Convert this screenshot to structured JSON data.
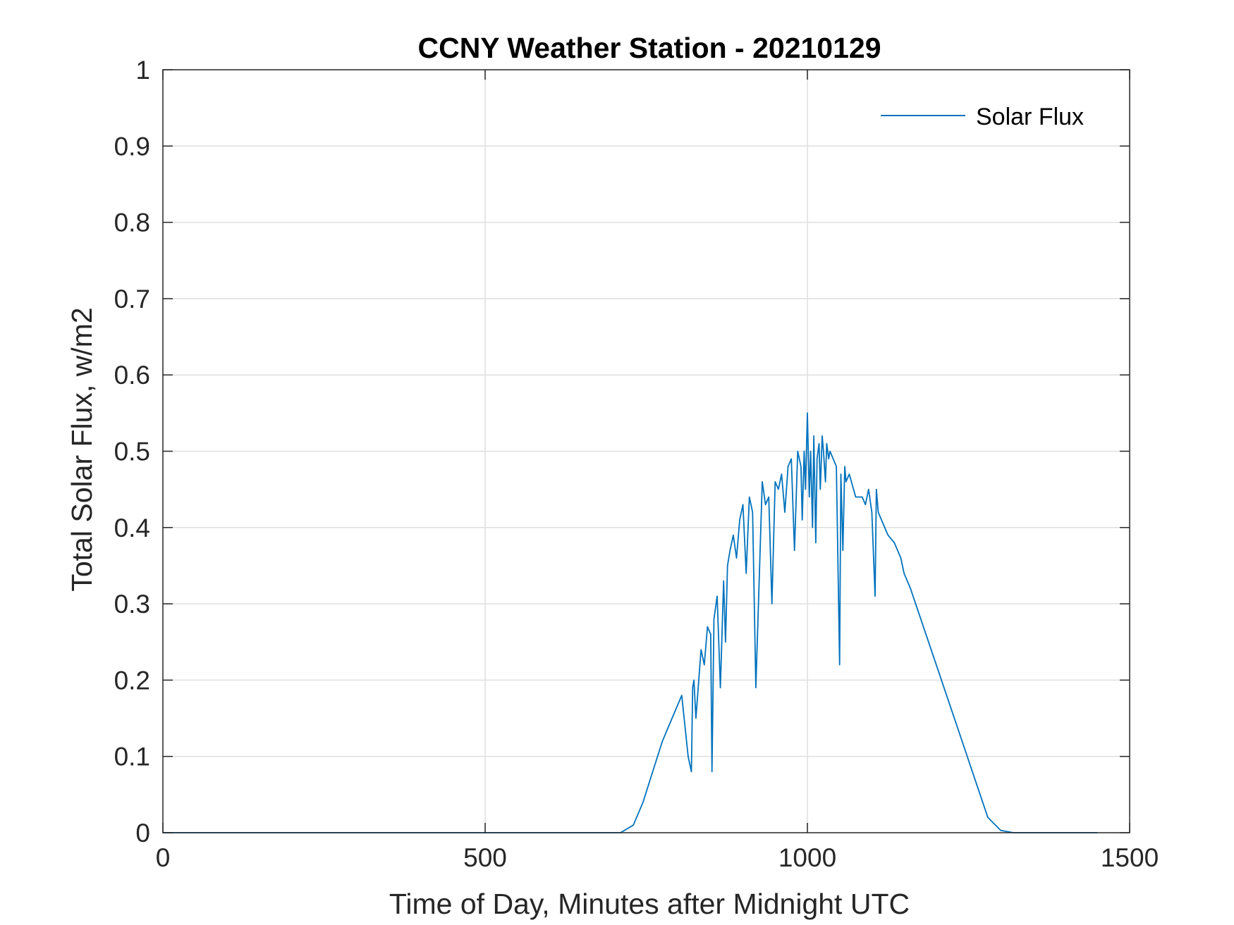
{
  "chart_data": {
    "type": "line",
    "title": "CCNY Weather Station - 20210129",
    "xlabel": "Time of Day, Minutes after Midnight UTC",
    "ylabel": "Total Solar Flux, w/m2",
    "xlim": [
      0,
      1500
    ],
    "ylim": [
      0,
      1
    ],
    "xticks": [
      0,
      500,
      1000,
      1500
    ],
    "xtick_labels": [
      "0",
      "500",
      "1000",
      "1500"
    ],
    "yticks": [
      0,
      0.1,
      0.2,
      0.3,
      0.4,
      0.5,
      0.6,
      0.7,
      0.8,
      0.9,
      1
    ],
    "ytick_labels": [
      "0",
      "0.1",
      "0.2",
      "0.3",
      "0.4",
      "0.5",
      "0.6",
      "0.7",
      "0.8",
      "0.9",
      "1"
    ],
    "grid": true,
    "legend": {
      "position": "top-right",
      "entries": [
        "Solar Flux"
      ]
    },
    "series": [
      {
        "name": "Solar Flux",
        "color": "#0072BD",
        "x": [
          0,
          710,
          730,
          745,
          760,
          775,
          790,
          805,
          815,
          820,
          822,
          824,
          827,
          835,
          840,
          845,
          850,
          852,
          855,
          860,
          865,
          870,
          873,
          876,
          880,
          885,
          890,
          895,
          900,
          905,
          910,
          915,
          920,
          930,
          935,
          940,
          945,
          950,
          955,
          960,
          965,
          970,
          975,
          980,
          985,
          990,
          992,
          995,
          997,
          1000,
          1003,
          1005,
          1008,
          1010,
          1013,
          1015,
          1018,
          1020,
          1023,
          1025,
          1028,
          1030,
          1033,
          1035,
          1040,
          1045,
          1050,
          1052,
          1055,
          1058,
          1060,
          1065,
          1075,
          1085,
          1090,
          1095,
          1100,
          1105,
          1107,
          1110,
          1115,
          1125,
          1135,
          1145,
          1150,
          1160,
          1180,
          1200,
          1220,
          1240,
          1260,
          1280,
          1300,
          1320,
          1340,
          1360,
          1450
        ],
        "y": [
          0,
          0,
          0.01,
          0.04,
          0.08,
          0.12,
          0.15,
          0.18,
          0.1,
          0.08,
          0.19,
          0.2,
          0.15,
          0.24,
          0.22,
          0.27,
          0.26,
          0.08,
          0.28,
          0.31,
          0.19,
          0.33,
          0.25,
          0.35,
          0.37,
          0.39,
          0.36,
          0.41,
          0.43,
          0.34,
          0.44,
          0.42,
          0.19,
          0.46,
          0.43,
          0.44,
          0.3,
          0.46,
          0.45,
          0.47,
          0.42,
          0.48,
          0.49,
          0.37,
          0.5,
          0.48,
          0.41,
          0.5,
          0.45,
          0.55,
          0.44,
          0.5,
          0.4,
          0.52,
          0.38,
          0.49,
          0.51,
          0.45,
          0.52,
          0.5,
          0.46,
          0.51,
          0.49,
          0.5,
          0.49,
          0.48,
          0.22,
          0.47,
          0.37,
          0.48,
          0.46,
          0.47,
          0.44,
          0.44,
          0.43,
          0.45,
          0.42,
          0.31,
          0.45,
          0.42,
          0.41,
          0.39,
          0.38,
          0.36,
          0.34,
          0.32,
          0.27,
          0.22,
          0.17,
          0.12,
          0.07,
          0.02,
          0.003,
          0,
          0,
          0,
          0
        ]
      }
    ]
  }
}
